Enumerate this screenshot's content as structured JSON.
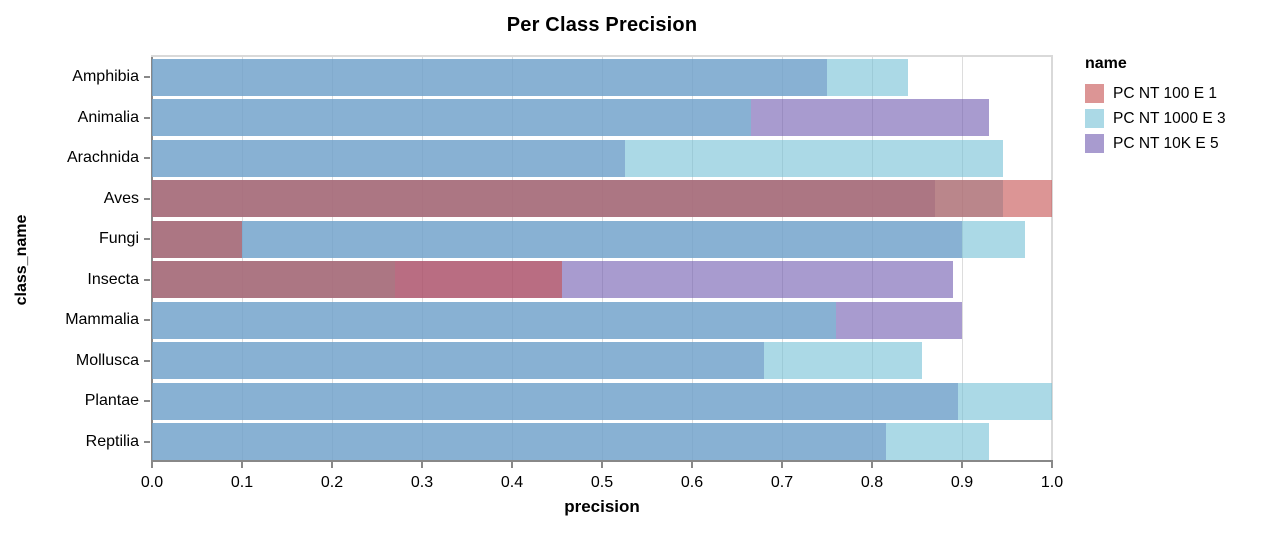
{
  "chart_data": {
    "type": "bar",
    "orientation": "horizontal",
    "layered": true,
    "title": "Per Class Precision",
    "xlabel": "precision",
    "ylabel": "class_name",
    "xlim": [
      0.0,
      1.0
    ],
    "grid": true,
    "x_tick_labels": [
      "0.0",
      "0.1",
      "0.2",
      "0.3",
      "0.4",
      "0.5",
      "0.6",
      "0.7",
      "0.8",
      "0.9",
      "1.0"
    ],
    "categories": [
      "Amphibia",
      "Animalia",
      "Arachnida",
      "Aves",
      "Fungi",
      "Insecta",
      "Mammalia",
      "Mollusca",
      "Plantae",
      "Reptilia"
    ],
    "series": [
      {
        "name": "PC NT 100 E 1",
        "color": "rgba(196,78,78,0.6)",
        "solid_hex": "#dc9595",
        "values": [
          0,
          0,
          0,
          1.0,
          0.1,
          0.455,
          0,
          0,
          0,
          0
        ]
      },
      {
        "name": "PC NT 1000 E 3",
        "color": "rgba(115,192,213,0.6)",
        "solid_hex": "#abd9e6",
        "values": [
          0.84,
          0.665,
          0.945,
          0.945,
          0.97,
          0.27,
          0.76,
          0.855,
          1.0,
          0.93
        ]
      },
      {
        "name": "PC NT 10K E 5",
        "color": "rgba(110,88,175,0.6)",
        "solid_hex": "#a89bcf",
        "values": [
          0.75,
          0.93,
          0.525,
          0.87,
          0.9,
          0.89,
          0.9,
          0.68,
          0.895,
          0.815
        ]
      }
    ],
    "legend": {
      "title": "name",
      "position": "right"
    },
    "colors": {
      "gridline": "#dddddd",
      "axis_domain": "#888888",
      "view_border": "#d9d9d9",
      "text": "#000000",
      "background": "#ffffff"
    }
  }
}
